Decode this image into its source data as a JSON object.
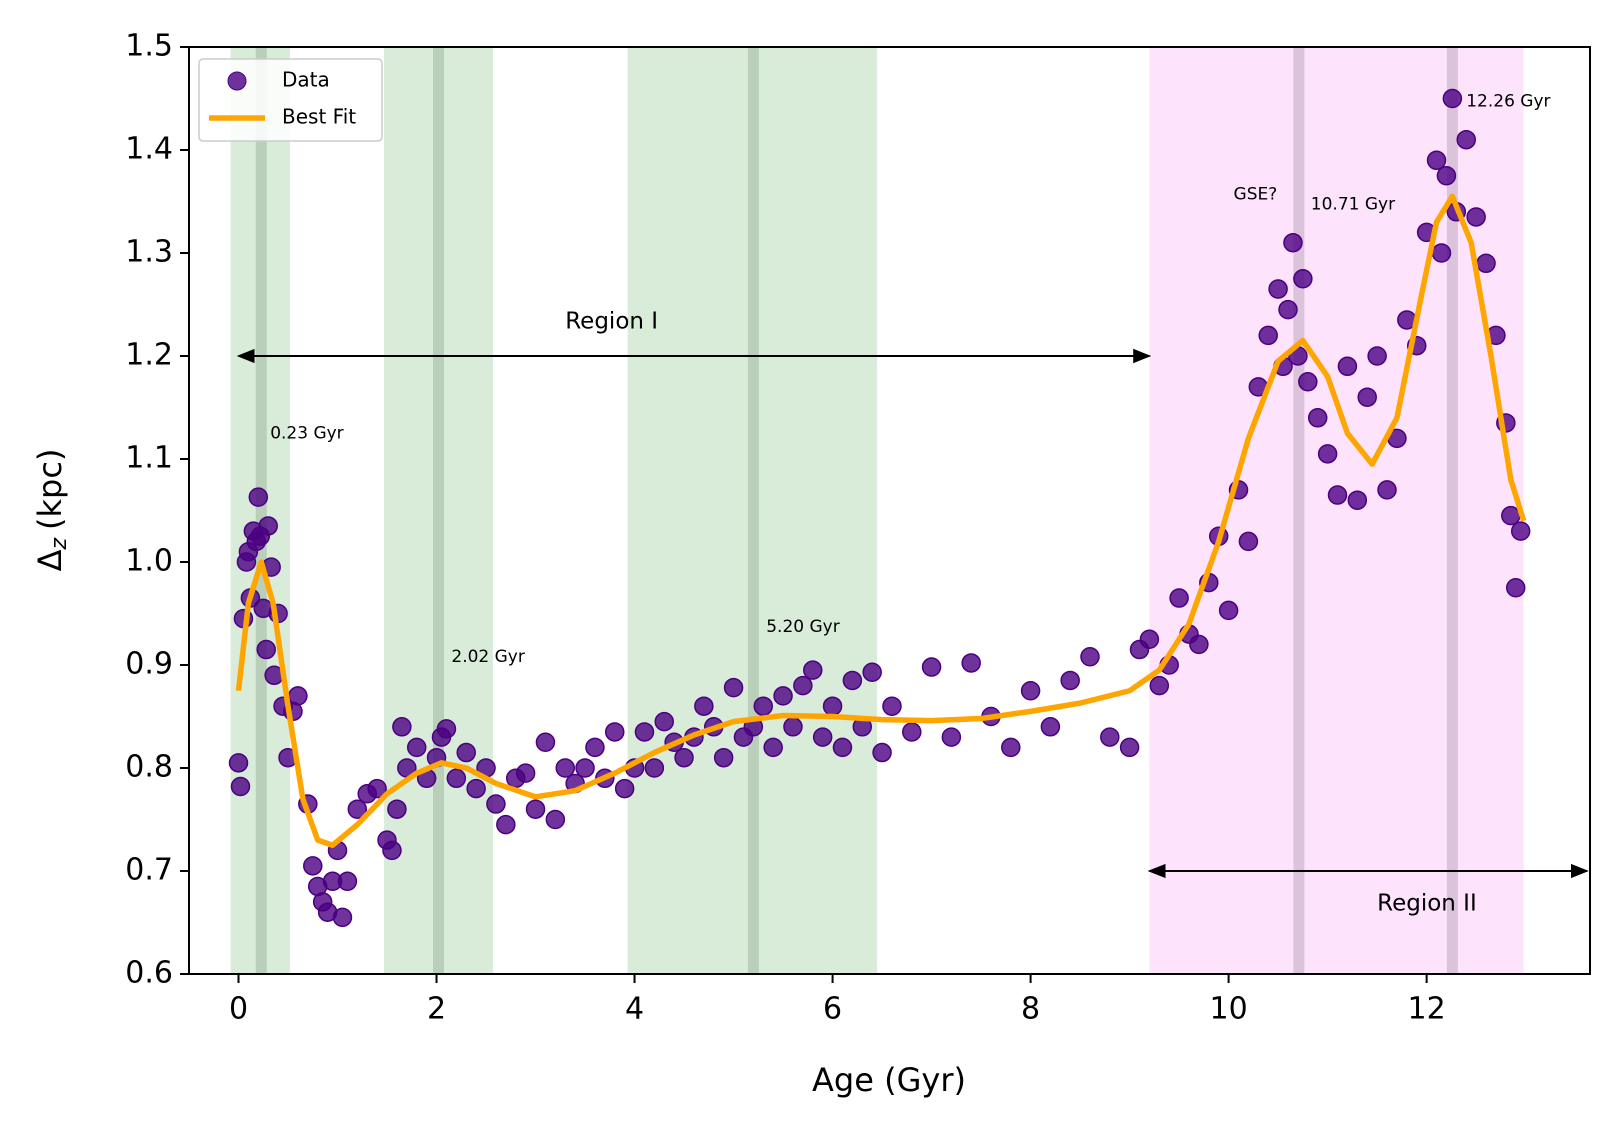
{
  "chart_data": {
    "type": "scatter",
    "xlabel": "Age (Gyr)",
    "ylabel": {
      "symbol": "Δ",
      "subscript": "z",
      "unit": "(kpc)"
    },
    "xlim": [
      -0.5,
      13.65
    ],
    "ylim": [
      0.6,
      1.5
    ],
    "xticks": [
      0,
      2,
      4,
      6,
      8,
      10,
      12
    ],
    "yticks": [
      0.6,
      0.7,
      0.8,
      0.9,
      {
        "value": 1.0,
        "label": "1.0"
      },
      1.1,
      1.2,
      1.3,
      1.4,
      1.5
    ],
    "legend": "upper left",
    "spans": [
      {
        "x": [
          -0.08,
          0.52
        ],
        "color": "#d9ecd9"
      },
      {
        "x": [
          1.47,
          2.57
        ],
        "color": "#d9ecd9"
      },
      {
        "x": [
          3.93,
          6.45
        ],
        "color": "#d9ecd9"
      },
      {
        "x": [
          9.2,
          12.98
        ],
        "color": "#fde4fc"
      }
    ],
    "vlines": [
      {
        "x": 0.23,
        "color": "#b9cfb9"
      },
      {
        "x": 2.02,
        "color": "#b9cfb9"
      },
      {
        "x": 5.2,
        "color": "#b9cfb9"
      },
      {
        "x": 10.71,
        "color": "#dcc3dc"
      },
      {
        "x": 12.26,
        "color": "#dcc3dc"
      }
    ],
    "annotations": [
      {
        "text": "0.23 Gyr",
        "x": 0.32,
        "y": 1.125
      },
      {
        "text": "2.02 Gyr",
        "x": 2.15,
        "y": 0.908
      },
      {
        "text": "5.20 Gyr",
        "x": 5.33,
        "y": 0.937
      },
      {
        "text": "GSE?",
        "x": 10.05,
        "y": 1.357
      },
      {
        "text": "10.71 Gyr",
        "x": 10.83,
        "y": 1.347
      },
      {
        "text": "12.26 Gyr",
        "x": 12.4,
        "y": 1.447
      }
    ],
    "arrows": [
      {
        "label": "Region I",
        "x": [
          0,
          9.2
        ],
        "y": 1.2,
        "label_x": 3.3,
        "label_y": 1.233
      },
      {
        "label": "Region II",
        "x": [
          9.2,
          13.62
        ],
        "y": 0.7,
        "label_x": 11.5,
        "label_y": 0.668
      }
    ],
    "series": [
      {
        "name": "Data",
        "type": "scatter",
        "color": "#4b0082",
        "x": [
          0,
          0.02,
          0.05,
          0.08,
          0.1,
          0.12,
          0.15,
          0.18,
          0.2,
          0.22,
          0.25,
          0.28,
          0.3,
          0.33,
          0.36,
          0.4,
          0.45,
          0.5,
          0.55,
          0.6,
          0.7,
          0.75,
          0.8,
          0.85,
          0.9,
          0.95,
          1.0,
          1.05,
          1.1,
          1.2,
          1.3,
          1.4,
          1.5,
          1.55,
          1.6,
          1.65,
          1.7,
          1.8,
          1.9,
          2.0,
          2.05,
          2.1,
          2.2,
          2.3,
          2.4,
          2.5,
          2.6,
          2.7,
          2.8,
          2.9,
          3.0,
          3.1,
          3.2,
          3.3,
          3.4,
          3.5,
          3.6,
          3.7,
          3.8,
          3.9,
          4.0,
          4.1,
          4.2,
          4.3,
          4.4,
          4.5,
          4.6,
          4.7,
          4.8,
          4.9,
          5.0,
          5.1,
          5.2,
          5.3,
          5.4,
          5.5,
          5.6,
          5.7,
          5.8,
          5.9,
          6.0,
          6.1,
          6.2,
          6.3,
          6.4,
          6.5,
          6.6,
          6.8,
          7.0,
          7.2,
          7.4,
          7.6,
          7.8,
          8.0,
          8.2,
          8.4,
          8.6,
          8.8,
          9.0,
          9.1,
          9.2,
          9.3,
          9.4,
          9.5,
          9.6,
          9.7,
          9.8,
          9.9,
          10.0,
          10.1,
          10.2,
          10.3,
          10.4,
          10.5,
          10.55,
          10.6,
          10.65,
          10.7,
          10.75,
          10.8,
          10.9,
          11.0,
          11.1,
          11.2,
          11.3,
          11.4,
          11.5,
          11.6,
          11.7,
          11.8,
          11.9,
          12.0,
          12.1,
          12.15,
          12.2,
          12.26,
          12.3,
          12.4,
          12.5,
          12.6,
          12.7,
          12.8,
          12.85,
          12.9,
          12.95
        ],
        "values": [
          0.805,
          0.782,
          0.945,
          1.0,
          1.01,
          0.965,
          1.03,
          1.02,
          1.063,
          1.025,
          0.955,
          0.915,
          1.035,
          0.995,
          0.89,
          0.95,
          0.86,
          0.81,
          0.855,
          0.87,
          0.765,
          0.705,
          0.685,
          0.67,
          0.66,
          0.69,
          0.72,
          0.655,
          0.69,
          0.76,
          0.775,
          0.78,
          0.73,
          0.72,
          0.76,
          0.84,
          0.8,
          0.82,
          0.79,
          0.81,
          0.83,
          0.838,
          0.79,
          0.815,
          0.78,
          0.8,
          0.765,
          0.745,
          0.79,
          0.795,
          0.76,
          0.825,
          0.75,
          0.8,
          0.785,
          0.8,
          0.82,
          0.79,
          0.835,
          0.78,
          0.8,
          0.835,
          0.8,
          0.845,
          0.825,
          0.81,
          0.83,
          0.86,
          0.84,
          0.81,
          0.878,
          0.83,
          0.84,
          0.86,
          0.82,
          0.87,
          0.84,
          0.88,
          0.895,
          0.83,
          0.86,
          0.82,
          0.885,
          0.84,
          0.893,
          0.815,
          0.86,
          0.835,
          0.898,
          0.83,
          0.902,
          0.85,
          0.82,
          0.875,
          0.84,
          0.885,
          0.908,
          0.83,
          0.82,
          0.915,
          0.925,
          0.88,
          0.9,
          0.965,
          0.93,
          0.92,
          0.98,
          1.025,
          0.953,
          1.07,
          1.02,
          1.17,
          1.22,
          1.265,
          1.19,
          1.245,
          1.31,
          1.2,
          1.275,
          1.175,
          1.14,
          1.105,
          1.065,
          1.19,
          1.06,
          1.16,
          1.2,
          1.07,
          1.12,
          1.235,
          1.21,
          1.32,
          1.39,
          1.3,
          1.375,
          1.45,
          1.34,
          1.41,
          1.335,
          1.29,
          1.22,
          1.135,
          1.045,
          0.975,
          1.03
        ]
      },
      {
        "name": "Best Fit",
        "type": "line",
        "color": "#ffa500",
        "x": [
          0,
          0.1,
          0.23,
          0.35,
          0.5,
          0.65,
          0.8,
          0.95,
          1.2,
          1.5,
          1.8,
          2.05,
          2.3,
          2.6,
          3.0,
          3.4,
          3.8,
          4.2,
          4.6,
          5.0,
          5.5,
          6.0,
          6.5,
          7.0,
          7.5,
          8.0,
          8.5,
          9.0,
          9.3,
          9.6,
          9.9,
          10.2,
          10.5,
          10.75,
          11.0,
          11.2,
          11.45,
          11.7,
          11.95,
          12.1,
          12.26,
          12.45,
          12.65,
          12.85,
          12.98
        ],
        "values": [
          0.875,
          0.96,
          1.0,
          0.96,
          0.86,
          0.77,
          0.73,
          0.725,
          0.745,
          0.775,
          0.795,
          0.805,
          0.8,
          0.785,
          0.772,
          0.778,
          0.795,
          0.815,
          0.832,
          0.845,
          0.851,
          0.85,
          0.847,
          0.846,
          0.848,
          0.855,
          0.863,
          0.875,
          0.895,
          0.94,
          1.02,
          1.12,
          1.195,
          1.215,
          1.18,
          1.125,
          1.095,
          1.14,
          1.26,
          1.33,
          1.355,
          1.31,
          1.2,
          1.08,
          1.04
        ]
      }
    ]
  }
}
